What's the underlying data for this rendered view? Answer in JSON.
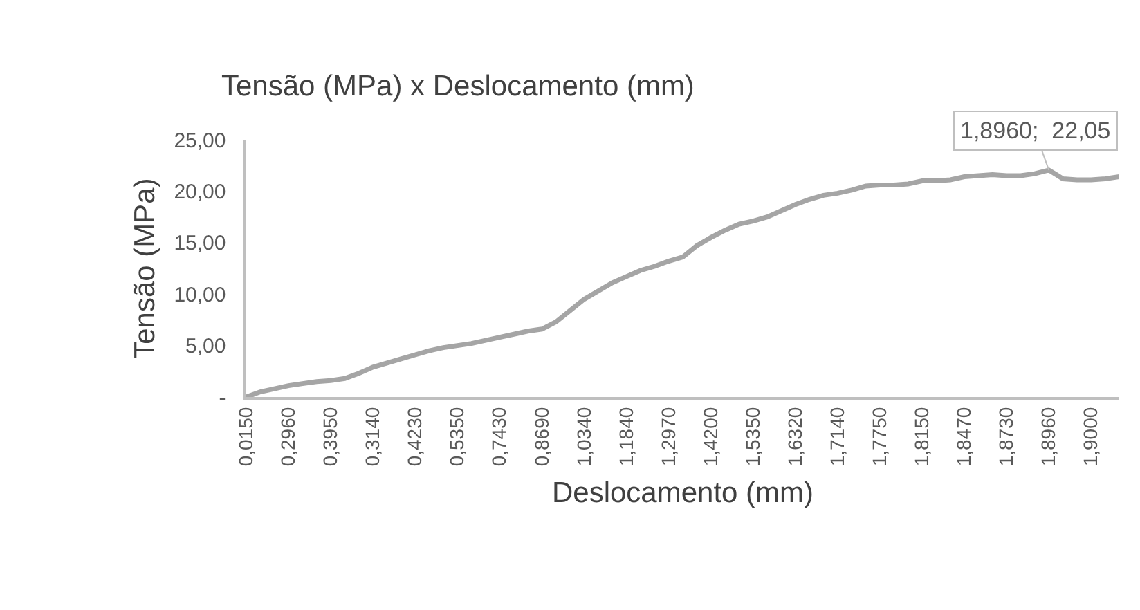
{
  "chart_data": {
    "type": "line",
    "title": "Tensão (MPa) x Deslocamento (mm)",
    "xlabel": "Deslocamento (mm)",
    "ylabel": "Tensão (MPa)",
    "categories": [
      "0,0150",
      null,
      null,
      "0,2960",
      null,
      null,
      "0,3950",
      null,
      null,
      "0,3140",
      null,
      null,
      "0,4230",
      null,
      null,
      "0,5350",
      null,
      null,
      "0,7430",
      null,
      null,
      "0,8690",
      null,
      null,
      "1,0340",
      null,
      null,
      "1,1840",
      null,
      null,
      "1,2970",
      null,
      null,
      "1,4200",
      null,
      null,
      "1,5350",
      null,
      null,
      "1,6320",
      null,
      null,
      "1,7140",
      null,
      null,
      "1,7750",
      null,
      null,
      "1,8150",
      null,
      null,
      "1,8470",
      null,
      null,
      "1,8730",
      null,
      null,
      "1,8960",
      null,
      null,
      "1,9000",
      null,
      null
    ],
    "series": [
      {
        "color": "#a5a5a5",
        "values": [
          0,
          0.5,
          0.8,
          1.1,
          1.3,
          1.5,
          1.6,
          1.8,
          2.3,
          2.9,
          3.3,
          3.7,
          4.1,
          4.5,
          4.8,
          5.0,
          5.2,
          5.5,
          5.8,
          6.1,
          6.4,
          6.6,
          7.3,
          8.4,
          9.5,
          10.3,
          11.1,
          11.7,
          12.3,
          12.7,
          13.2,
          13.6,
          14.7,
          15.5,
          16.2,
          16.8,
          17.1,
          17.5,
          18.1,
          18.7,
          19.2,
          19.6,
          19.8,
          20.1,
          20.5,
          20.6,
          20.6,
          20.7,
          21.0,
          21.0,
          21.1,
          21.4,
          21.5,
          21.6,
          21.5,
          21.5,
          21.7,
          22.05,
          21.2,
          21.1,
          21.1,
          21.2,
          21.4
        ]
      }
    ],
    "ylim": [
      0,
      25
    ],
    "yticks": [
      {
        "value": 0,
        "label": "-"
      },
      {
        "value": 5,
        "label": "5,00"
      },
      {
        "value": 10,
        "label": "10,00"
      },
      {
        "value": 15,
        "label": "15,00"
      },
      {
        "value": 20,
        "label": "20,00"
      },
      {
        "value": 25,
        "label": "25,00"
      }
    ],
    "annotations": [
      {
        "text": "1,8960;  22,05",
        "x": "1,8960",
        "y": 22.05
      }
    ],
    "marker": "none",
    "line_style": "solid"
  }
}
